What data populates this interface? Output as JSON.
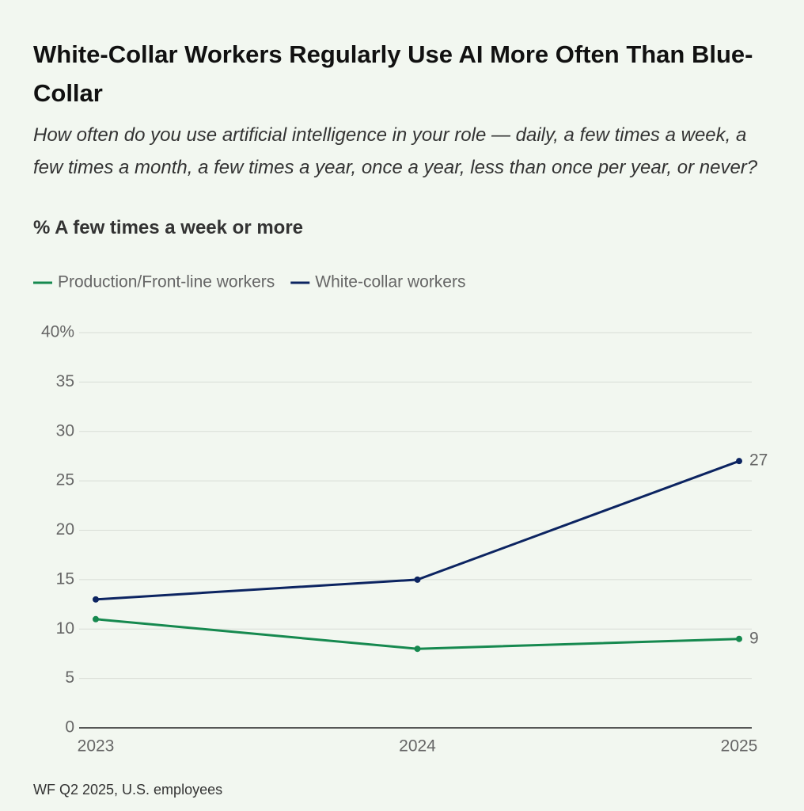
{
  "chart_data": {
    "type": "line",
    "title": "White-Collar Workers Regularly Use AI More Often Than Blue-Collar",
    "subtitle": "How often do you use artificial intelligence in your role — daily, a few times a week, a few times a month, a few times a year, once a year, less than once per year, or never?",
    "y_label": "% A few times a week or more",
    "source": "WF Q2 2025, U.S. employees",
    "categories": [
      "2023",
      "2024",
      "2025"
    ],
    "series": [
      {
        "name": "Production/Front-line workers",
        "color": "#16894f",
        "values": [
          11,
          8,
          9
        ]
      },
      {
        "name": "White-collar workers",
        "color": "#0c2461",
        "values": [
          13,
          15,
          27
        ]
      }
    ],
    "ylim": [
      0,
      40
    ],
    "yticks": [
      0,
      5,
      10,
      15,
      20,
      25,
      30,
      35,
      {
        "value": 40,
        "label": "40%"
      }
    ],
    "grid": true
  }
}
